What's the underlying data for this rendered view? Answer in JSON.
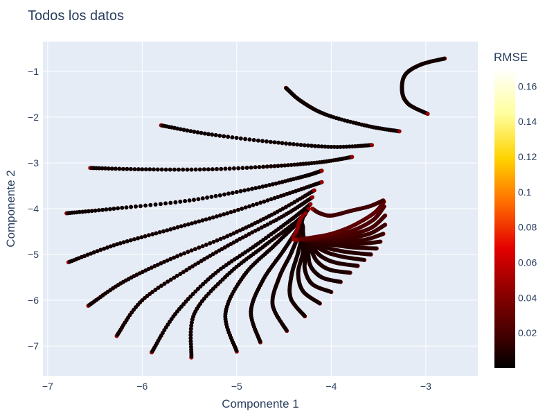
{
  "chart_data": {
    "type": "scatter",
    "title": "Todos los datos",
    "xlabel": "Componente 1",
    "ylabel": "Componente 2",
    "xlim": [
      -7.05,
      -2.45
    ],
    "ylim": [
      -7.65,
      -0.35
    ],
    "x_ticks": [
      -7,
      -6,
      -5,
      -4,
      -3
    ],
    "x_tick_labels": [
      "−7",
      "−6",
      "−5",
      "−4",
      "−3"
    ],
    "y_ticks": [
      -1,
      -2,
      -3,
      -4,
      -5,
      -6,
      -7
    ],
    "y_tick_labels": [
      "−1",
      "−2",
      "−3",
      "−4",
      "−5",
      "−6",
      "−7"
    ],
    "grid": true,
    "plot_background": "#e5ecf6",
    "colorbar": {
      "title": "RMSE",
      "range": [
        0,
        0.17
      ],
      "ticks": [
        0.02,
        0.04,
        0.06,
        0.08,
        0.1,
        0.12,
        0.14,
        0.16
      ],
      "tick_labels": [
        "0.02",
        "0.04",
        "0.06",
        "0.08",
        "0.1",
        "0.12",
        "0.14",
        "0.16"
      ],
      "colorscale": [
        "#000000",
        "#3d0000",
        "#8b0000",
        "#e30000",
        "#ff6b00",
        "#ffd300",
        "#ffff9f",
        "#ffffff"
      ]
    },
    "curves": [
      {
        "points": [
          [
            -4.48,
            -1.36
          ],
          [
            -4.32,
            -1.65
          ],
          [
            -4.05,
            -1.95
          ],
          [
            -3.6,
            -2.2
          ],
          [
            -3.28,
            -2.31
          ]
        ],
        "rmse": 0.004
      },
      {
        "points": [
          [
            -5.8,
            -2.18
          ],
          [
            -5.3,
            -2.37
          ],
          [
            -4.6,
            -2.55
          ],
          [
            -4.0,
            -2.65
          ],
          [
            -3.57,
            -2.61
          ]
        ],
        "rmse": 0.004
      },
      {
        "points": [
          [
            -6.55,
            -3.11
          ],
          [
            -6.0,
            -3.14
          ],
          [
            -5.3,
            -3.14
          ],
          [
            -4.6,
            -3.07
          ],
          [
            -4.1,
            -2.98
          ],
          [
            -3.78,
            -2.87
          ]
        ],
        "rmse": 0.005
      },
      {
        "points": [
          [
            -6.8,
            -4.1
          ],
          [
            -6.3,
            -4.0
          ],
          [
            -5.5,
            -3.82
          ],
          [
            -4.8,
            -3.55
          ],
          [
            -4.3,
            -3.3
          ],
          [
            -4.1,
            -3.17
          ]
        ],
        "rmse": 0.004
      },
      {
        "points": [
          [
            -6.78,
            -5.17
          ],
          [
            -6.3,
            -4.8
          ],
          [
            -5.7,
            -4.45
          ],
          [
            -5.1,
            -4.1
          ],
          [
            -4.5,
            -3.7
          ],
          [
            -4.1,
            -3.42
          ]
        ],
        "rmse": 0.005
      },
      {
        "points": [
          [
            -6.57,
            -6.12
          ],
          [
            -6.2,
            -5.6
          ],
          [
            -5.7,
            -5.1
          ],
          [
            -5.1,
            -4.6
          ],
          [
            -4.6,
            -4.1
          ],
          [
            -4.18,
            -3.6
          ]
        ],
        "rmse": 0.006
      },
      {
        "points": [
          [
            -6.27,
            -6.78
          ],
          [
            -6.0,
            -6.0
          ],
          [
            -5.5,
            -5.3
          ],
          [
            -5.0,
            -4.7
          ],
          [
            -4.5,
            -4.15
          ],
          [
            -4.2,
            -3.75
          ]
        ],
        "rmse": 0.006
      },
      {
        "points": [
          [
            -5.9,
            -7.14
          ],
          [
            -5.65,
            -6.3
          ],
          [
            -5.25,
            -5.45
          ],
          [
            -4.8,
            -4.8
          ],
          [
            -4.4,
            -4.2
          ],
          [
            -4.22,
            -3.9
          ]
        ],
        "rmse": 0.005
      },
      {
        "points": [
          [
            -5.48,
            -7.25
          ],
          [
            -5.45,
            -6.3
          ],
          [
            -5.1,
            -5.45
          ],
          [
            -4.7,
            -4.8
          ],
          [
            -4.35,
            -4.25
          ],
          [
            -4.24,
            -4.0
          ]
        ],
        "rmse": 0.005
      },
      {
        "points": [
          [
            -5.0,
            -7.12
          ],
          [
            -5.12,
            -6.3
          ],
          [
            -4.92,
            -5.45
          ],
          [
            -4.6,
            -4.8
          ],
          [
            -4.35,
            -4.3
          ],
          [
            -4.27,
            -4.1
          ]
        ],
        "rmse": 0.005
      },
      {
        "points": [
          [
            -4.75,
            -6.92
          ],
          [
            -4.85,
            -6.25
          ],
          [
            -4.72,
            -5.55
          ],
          [
            -4.5,
            -4.9
          ],
          [
            -4.33,
            -4.35
          ],
          [
            -4.3,
            -4.15
          ]
        ],
        "rmse": 0.005
      },
      {
        "points": [
          [
            -4.47,
            -6.67
          ],
          [
            -4.62,
            -6.1
          ],
          [
            -4.55,
            -5.5
          ],
          [
            -4.42,
            -4.95
          ],
          [
            -4.32,
            -4.4
          ],
          [
            -4.32,
            -4.2
          ]
        ],
        "rmse": 0.006
      },
      {
        "points": [
          [
            -4.28,
            -6.35
          ],
          [
            -4.43,
            -5.95
          ],
          [
            -4.42,
            -5.45
          ],
          [
            -4.35,
            -4.95
          ],
          [
            -4.3,
            -4.45
          ],
          [
            -4.33,
            -4.25
          ]
        ],
        "rmse": 0.006
      },
      {
        "points": [
          [
            -4.12,
            -6.07
          ],
          [
            -4.3,
            -5.8
          ],
          [
            -4.35,
            -5.4
          ],
          [
            -4.3,
            -4.95
          ],
          [
            -4.3,
            -4.5
          ],
          [
            -4.34,
            -4.3
          ]
        ],
        "rmse": 0.006
      },
      {
        "points": [
          [
            -4.0,
            -5.82
          ],
          [
            -4.2,
            -5.65
          ],
          [
            -4.28,
            -5.32
          ],
          [
            -4.27,
            -4.95
          ],
          [
            -4.3,
            -4.55
          ],
          [
            -4.35,
            -4.35
          ]
        ],
        "rmse": 0.007
      },
      {
        "points": [
          [
            -3.9,
            -5.6
          ],
          [
            -4.1,
            -5.5
          ],
          [
            -4.22,
            -5.25
          ],
          [
            -4.25,
            -4.9
          ],
          [
            -4.3,
            -4.6
          ],
          [
            -4.35,
            -4.4
          ]
        ],
        "rmse": 0.007
      },
      {
        "points": [
          [
            -3.8,
            -5.4
          ],
          [
            -4.02,
            -5.33
          ],
          [
            -4.15,
            -5.15
          ],
          [
            -4.22,
            -4.88
          ],
          [
            -4.3,
            -4.62
          ],
          [
            -4.36,
            -4.45
          ]
        ],
        "rmse": 0.008
      },
      {
        "points": [
          [
            -3.72,
            -5.25
          ],
          [
            -3.95,
            -5.18
          ],
          [
            -4.1,
            -5.05
          ],
          [
            -4.2,
            -4.85
          ],
          [
            -4.3,
            -4.65
          ],
          [
            -4.37,
            -4.5
          ]
        ],
        "rmse": 0.009
      },
      {
        "points": [
          [
            -3.65,
            -5.12
          ],
          [
            -3.88,
            -5.05
          ],
          [
            -4.05,
            -4.95
          ],
          [
            -4.18,
            -4.8
          ],
          [
            -4.3,
            -4.65
          ],
          [
            -4.38,
            -4.55
          ]
        ],
        "rmse": 0.01
      },
      {
        "points": [
          [
            -3.58,
            -5.0
          ],
          [
            -3.82,
            -4.95
          ],
          [
            -4.0,
            -4.88
          ],
          [
            -4.17,
            -4.78
          ],
          [
            -4.3,
            -4.67
          ],
          [
            -4.38,
            -4.58
          ]
        ],
        "rmse": 0.011
      },
      {
        "points": [
          [
            -3.52,
            -4.87
          ],
          [
            -3.75,
            -4.85
          ],
          [
            -3.95,
            -4.8
          ],
          [
            -4.15,
            -4.75
          ],
          [
            -4.3,
            -4.68
          ],
          [
            -4.39,
            -4.6
          ]
        ],
        "rmse": 0.012
      },
      {
        "points": [
          [
            -3.48,
            -4.72
          ],
          [
            -3.7,
            -4.77
          ],
          [
            -3.92,
            -4.74
          ],
          [
            -4.13,
            -4.72
          ],
          [
            -4.3,
            -4.68
          ],
          [
            -4.4,
            -4.62
          ]
        ],
        "rmse": 0.013
      },
      {
        "points": [
          [
            -3.45,
            -4.55
          ],
          [
            -3.65,
            -4.68
          ],
          [
            -3.88,
            -4.7
          ],
          [
            -4.1,
            -4.7
          ],
          [
            -4.28,
            -4.68
          ],
          [
            -4.4,
            -4.64
          ]
        ],
        "rmse": 0.015
      },
      {
        "points": [
          [
            -3.43,
            -4.35
          ],
          [
            -3.6,
            -4.55
          ],
          [
            -3.85,
            -4.65
          ],
          [
            -4.08,
            -4.68
          ],
          [
            -4.27,
            -4.68
          ],
          [
            -4.4,
            -4.66
          ]
        ],
        "rmse": 0.017
      },
      {
        "points": [
          [
            -3.43,
            -4.15
          ],
          [
            -3.58,
            -4.42
          ],
          [
            -3.82,
            -4.58
          ],
          [
            -4.05,
            -4.64
          ],
          [
            -4.25,
            -4.67
          ],
          [
            -4.4,
            -4.67
          ]
        ],
        "rmse": 0.02
      },
      {
        "points": [
          [
            -3.44,
            -3.95
          ],
          [
            -3.56,
            -4.25
          ],
          [
            -3.8,
            -4.5
          ],
          [
            -4.02,
            -4.6
          ],
          [
            -4.22,
            -4.66
          ],
          [
            -4.38,
            -4.68
          ]
        ],
        "rmse": 0.023
      },
      {
        "points": [
          [
            -3.44,
            -3.84
          ],
          [
            -3.55,
            -4.1
          ],
          [
            -3.78,
            -4.38
          ],
          [
            -4.0,
            -4.55
          ],
          [
            -4.2,
            -4.63
          ],
          [
            -4.37,
            -4.68
          ]
        ],
        "rmse": 0.027
      },
      {
        "points": [
          [
            -3.45,
            -3.82
          ],
          [
            -3.6,
            -3.95
          ],
          [
            -3.8,
            -4.05
          ],
          [
            -4.0,
            -4.15
          ],
          [
            -4.12,
            -4.1
          ],
          [
            -4.2,
            -4.0
          ]
        ],
        "rmse": 0.018
      },
      {
        "points": [
          [
            -2.8,
            -0.72
          ],
          [
            -3.05,
            -0.85
          ],
          [
            -3.22,
            -1.08
          ],
          [
            -3.25,
            -1.45
          ],
          [
            -3.18,
            -1.72
          ],
          [
            -2.98,
            -1.93
          ]
        ],
        "rmse": 0.005
      }
    ]
  }
}
